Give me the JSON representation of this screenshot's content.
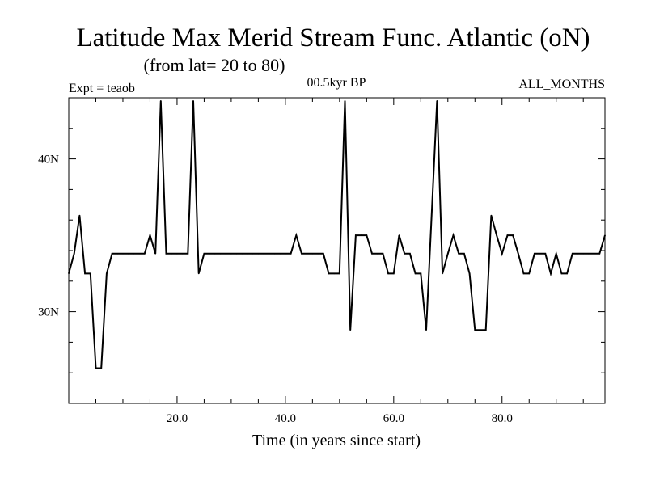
{
  "chart_data": {
    "type": "line",
    "title": "Latitude Max Merid Stream Func. Atlantic (oN)",
    "subtitle": "(from lat= 20 to 80)",
    "annotations": {
      "left": "Expt = teaob",
      "center": "00.5kyr BP",
      "right": "ALL_MONTHS"
    },
    "xlabel": "Time (in years since start)",
    "ylabel": "",
    "xlim": [
      0,
      99
    ],
    "ylim": [
      24,
      44
    ],
    "x_ticks": [
      {
        "value": 20,
        "label": "20.0"
      },
      {
        "value": 40,
        "label": "40.0"
      },
      {
        "value": 60,
        "label": "60.0"
      },
      {
        "value": 80,
        "label": "80.0"
      }
    ],
    "y_ticks": [
      {
        "value": 30,
        "label": "30N"
      },
      {
        "value": 40,
        "label": "40N"
      }
    ],
    "grid": false,
    "color": "#000000",
    "series": [
      {
        "name": "Latitude Max Merid Stream Func",
        "x": [
          0,
          1,
          2,
          3,
          4,
          5,
          6,
          7,
          8,
          9,
          10,
          11,
          12,
          13,
          14,
          15,
          16,
          17,
          18,
          19,
          20,
          21,
          22,
          23,
          24,
          25,
          26,
          27,
          28,
          29,
          30,
          31,
          32,
          33,
          34,
          35,
          36,
          37,
          38,
          39,
          40,
          41,
          42,
          43,
          44,
          45,
          46,
          47,
          48,
          49,
          50,
          51,
          52,
          53,
          54,
          55,
          56,
          57,
          58,
          59,
          60,
          61,
          62,
          63,
          64,
          65,
          66,
          67,
          68,
          69,
          70,
          71,
          72,
          73,
          74,
          75,
          76,
          77,
          78,
          79,
          80,
          81,
          82,
          83,
          84,
          85,
          86,
          87,
          88,
          89,
          90,
          91,
          92,
          93,
          94,
          95,
          96,
          97,
          98,
          99
        ],
        "values": [
          32.5,
          33.8,
          36.3,
          32.5,
          32.5,
          26.3,
          26.3,
          32.5,
          33.8,
          33.8,
          33.8,
          33.8,
          33.8,
          33.8,
          33.8,
          35.0,
          33.8,
          43.8,
          33.8,
          33.8,
          33.8,
          33.8,
          33.8,
          43.8,
          32.5,
          33.8,
          33.8,
          33.8,
          33.8,
          33.8,
          33.8,
          33.8,
          33.8,
          33.8,
          33.8,
          33.8,
          33.8,
          33.8,
          33.8,
          33.8,
          33.8,
          33.8,
          35.0,
          33.8,
          33.8,
          33.8,
          33.8,
          33.8,
          32.5,
          32.5,
          32.5,
          43.8,
          28.8,
          35.0,
          35.0,
          35.0,
          33.8,
          33.8,
          33.8,
          32.5,
          32.5,
          35.0,
          33.8,
          33.8,
          32.5,
          32.5,
          28.8,
          36.3,
          43.8,
          32.5,
          33.8,
          35.0,
          33.8,
          33.8,
          32.5,
          28.8,
          28.8,
          28.8,
          36.3,
          35.0,
          33.8,
          35.0,
          35.0,
          33.8,
          32.5,
          32.5,
          33.8,
          33.8,
          33.8,
          32.5,
          33.8,
          32.5,
          32.5,
          33.8,
          33.8,
          33.8,
          33.8,
          33.8,
          33.8,
          35.0
        ]
      }
    ]
  }
}
